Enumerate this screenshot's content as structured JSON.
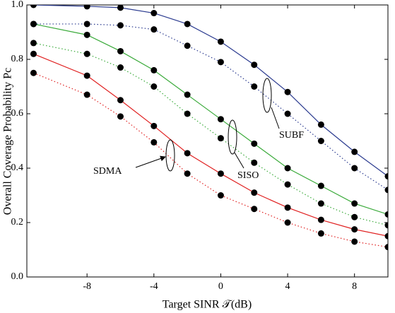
{
  "chart_data": {
    "type": "line",
    "xlabel": "Target SINR 𝒯(dB)",
    "ylabel": "Overall Coverage Probability Pc",
    "x": [
      -11.2,
      -8,
      -6,
      -4,
      -2,
      0,
      2,
      4,
      6,
      8,
      10
    ],
    "series": [
      {
        "color": "#2a3a8f",
        "style": "solid",
        "values": [
          1.0,
          0.995,
          0.99,
          0.97,
          0.93,
          0.865,
          0.78,
          0.68,
          0.56,
          0.46,
          0.37
        ]
      },
      {
        "color": "#2a3a8f",
        "style": "dotted",
        "values": [
          0.93,
          0.93,
          0.925,
          0.91,
          0.85,
          0.79,
          0.7,
          0.6,
          0.5,
          0.4,
          0.32
        ]
      },
      {
        "color": "#3aaa3a",
        "style": "solid",
        "values": [
          0.93,
          0.89,
          0.83,
          0.76,
          0.67,
          0.58,
          0.49,
          0.4,
          0.335,
          0.27,
          0.23
        ]
      },
      {
        "color": "#3aaa3a",
        "style": "dotted",
        "values": [
          0.86,
          0.82,
          0.77,
          0.7,
          0.6,
          0.51,
          0.42,
          0.34,
          0.27,
          0.22,
          0.19
        ]
      },
      {
        "color": "#e02020",
        "style": "solid",
        "values": [
          0.82,
          0.74,
          0.65,
          0.555,
          0.455,
          0.38,
          0.31,
          0.255,
          0.21,
          0.175,
          0.15
        ]
      },
      {
        "color": "#e02020",
        "style": "dotted",
        "values": [
          0.75,
          0.67,
          0.59,
          0.495,
          0.38,
          0.3,
          0.25,
          0.2,
          0.16,
          0.13,
          0.11
        ]
      }
    ],
    "marker_color": "#000000",
    "xlim": [
      -11.6,
      10
    ],
    "xticks": [
      -8,
      -4,
      0,
      4,
      8
    ],
    "ylim": [
      0,
      1
    ],
    "yticks": [
      {
        "value": 0,
        "label": "0.0"
      },
      0.2,
      0.4,
      0.6,
      0.8,
      {
        "value": 1,
        "label": "1.0"
      }
    ],
    "annotations": [
      "SUBF",
      "SISO",
      "SDMA"
    ]
  }
}
